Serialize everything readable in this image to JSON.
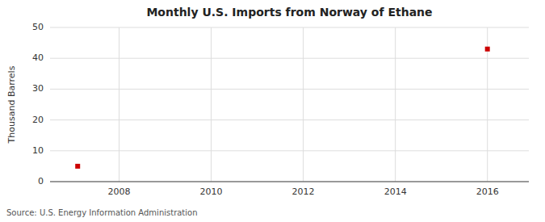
{
  "chart_data": {
    "type": "scatter",
    "title": "Monthly U.S. Imports from Norway of Ethane",
    "ylabel": "Thousand Barrels",
    "source": "Source: U.S. Energy Information Administration",
    "x": [
      2007.1,
      2016.0
    ],
    "values": [
      5,
      43
    ],
    "color": "#cc0000",
    "marker": "square",
    "xlim": [
      2006.5,
      2016.9
    ],
    "ylim": [
      0,
      50
    ],
    "xticks": [
      2008,
      2010,
      2012,
      2014,
      2016
    ],
    "yticks": [
      0,
      10,
      20,
      30,
      40,
      50
    ],
    "grid": true
  }
}
